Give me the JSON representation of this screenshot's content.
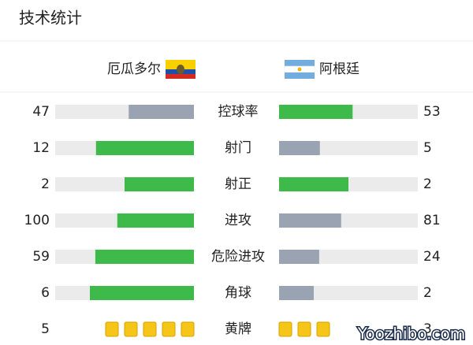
{
  "header": {
    "title": "技术统计"
  },
  "teams": {
    "home": "厄瓜多尔",
    "away": "阿根廷"
  },
  "stats": [
    {
      "label": "控球率",
      "home": 47,
      "away": 53
    },
    {
      "label": "射门",
      "home": 12,
      "away": 5
    },
    {
      "label": "射正",
      "home": 2,
      "away": 2
    },
    {
      "label": "进攻",
      "home": 100,
      "away": 81
    },
    {
      "label": "危险进攻",
      "home": 59,
      "away": 24
    },
    {
      "label": "角球",
      "home": 6,
      "away": 2
    }
  ],
  "cards": {
    "label": "黄牌",
    "home": 5,
    "away": 3
  },
  "watermark": "Yoozhibo.com"
}
